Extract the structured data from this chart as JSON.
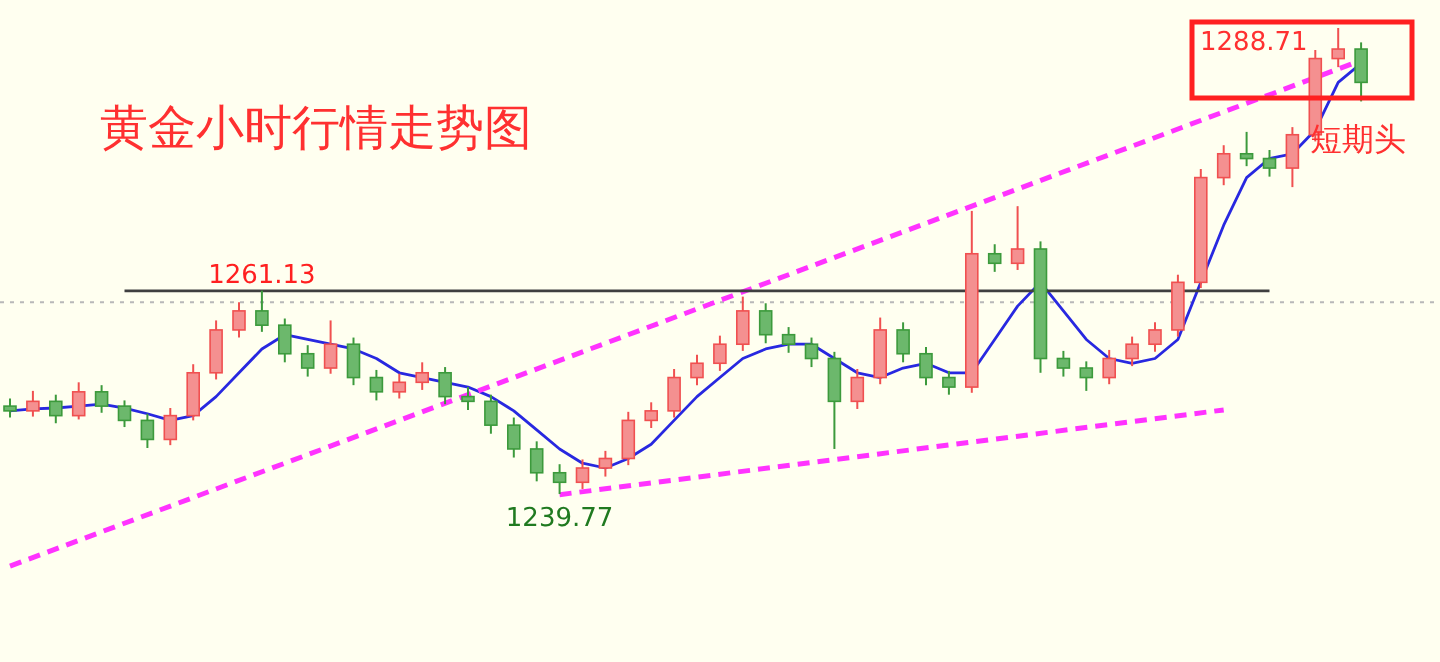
{
  "chart_data": {
    "type": "candlestick",
    "title": "黄金小时行情走势图",
    "categories": [
      null,
      null,
      null,
      null,
      null,
      null,
      null,
      null,
      null,
      null,
      null,
      null,
      null,
      null,
      null,
      null,
      null,
      null,
      null,
      null,
      null,
      null,
      null,
      null,
      null,
      null,
      null,
      null,
      null,
      null,
      null,
      null,
      null,
      null,
      null,
      null,
      null,
      null,
      null,
      null,
      null,
      null,
      null,
      null,
      null,
      null,
      null,
      null,
      null,
      null,
      null,
      null,
      null,
      null,
      null,
      null,
      null,
      null,
      null,
      null
    ],
    "ohlc": [
      [
        1249.0,
        1249.8,
        1247.8,
        1248.5
      ],
      [
        1248.5,
        1250.6,
        1247.9,
        1249.5
      ],
      [
        1249.5,
        1250.2,
        1247.2,
        1248.0
      ],
      [
        1248.0,
        1251.5,
        1247.6,
        1250.5
      ],
      [
        1250.5,
        1251.2,
        1248.3,
        1249.0
      ],
      [
        1249.0,
        1249.6,
        1246.8,
        1247.5
      ],
      [
        1247.5,
        1248.2,
        1244.6,
        1245.5
      ],
      [
        1245.5,
        1248.8,
        1244.9,
        1248.0
      ],
      [
        1248.0,
        1253.4,
        1247.5,
        1252.5
      ],
      [
        1252.5,
        1258.0,
        1251.8,
        1257.0
      ],
      [
        1257.0,
        1259.9,
        1256.2,
        1259.0
      ],
      [
        1259.0,
        1261.13,
        1256.8,
        1257.5
      ],
      [
        1257.5,
        1258.2,
        1253.6,
        1254.5
      ],
      [
        1254.5,
        1255.4,
        1252.1,
        1253.0
      ],
      [
        1253.0,
        1258.0,
        1252.4,
        1255.5
      ],
      [
        1255.5,
        1256.2,
        1251.2,
        1252.0
      ],
      [
        1252.0,
        1252.8,
        1249.6,
        1250.5
      ],
      [
        1250.5,
        1252.4,
        1249.8,
        1251.5
      ],
      [
        1251.5,
        1253.6,
        1250.7,
        1252.5
      ],
      [
        1252.5,
        1253.1,
        1249.2,
        1250.0
      ],
      [
        1250.0,
        1251.0,
        1248.6,
        1249.5
      ],
      [
        1249.5,
        1250.2,
        1246.1,
        1247.0
      ],
      [
        1247.0,
        1247.8,
        1243.6,
        1244.5
      ],
      [
        1244.5,
        1245.3,
        1241.1,
        1242.0
      ],
      [
        1242.0,
        1242.9,
        1239.77,
        1241.0
      ],
      [
        1241.0,
        1243.4,
        1240.3,
        1242.5
      ],
      [
        1242.5,
        1244.3,
        1241.6,
        1243.5
      ],
      [
        1243.5,
        1248.4,
        1242.8,
        1247.5
      ],
      [
        1247.5,
        1249.4,
        1246.7,
        1248.5
      ],
      [
        1248.5,
        1252.9,
        1247.8,
        1252.0
      ],
      [
        1252.0,
        1254.4,
        1251.2,
        1253.5
      ],
      [
        1253.5,
        1256.4,
        1252.7,
        1255.5
      ],
      [
        1255.5,
        1260.5,
        1254.8,
        1259.0
      ],
      [
        1259.0,
        1259.8,
        1255.6,
        1256.5
      ],
      [
        1256.5,
        1257.3,
        1254.6,
        1255.5
      ],
      [
        1255.5,
        1256.2,
        1253.1,
        1254.0
      ],
      [
        1254.0,
        1254.7,
        1244.5,
        1249.5
      ],
      [
        1249.5,
        1252.9,
        1248.7,
        1252.0
      ],
      [
        1252.0,
        1258.3,
        1251.3,
        1257.0
      ],
      [
        1257.0,
        1257.8,
        1253.6,
        1254.5
      ],
      [
        1254.5,
        1255.2,
        1251.2,
        1252.0
      ],
      [
        1252.0,
        1252.7,
        1250.2,
        1251.0
      ],
      [
        1251.0,
        1269.5,
        1250.4,
        1265.0
      ],
      [
        1265.0,
        1266.0,
        1263.1,
        1264.0
      ],
      [
        1264.0,
        1270.0,
        1263.3,
        1265.5
      ],
      [
        1265.5,
        1266.3,
        1252.5,
        1254.0
      ],
      [
        1254.0,
        1254.8,
        1252.1,
        1253.0
      ],
      [
        1253.0,
        1253.7,
        1250.6,
        1252.0
      ],
      [
        1252.0,
        1254.9,
        1251.3,
        1254.0
      ],
      [
        1254.0,
        1256.3,
        1253.2,
        1255.5
      ],
      [
        1255.5,
        1257.8,
        1254.7,
        1257.0
      ],
      [
        1257.0,
        1262.8,
        1256.3,
        1262.0
      ],
      [
        1262.0,
        1273.9,
        1261.4,
        1273.0
      ],
      [
        1273.0,
        1276.4,
        1272.2,
        1275.5
      ],
      [
        1275.5,
        1277.8,
        1274.2,
        1275.0
      ],
      [
        1275.0,
        1275.9,
        1273.1,
        1274.0
      ],
      [
        1274.0,
        1278.3,
        1272.0,
        1277.5
      ],
      [
        1277.5,
        1286.4,
        1276.8,
        1285.5
      ],
      [
        1285.5,
        1288.71,
        1284.6,
        1286.5
      ],
      [
        1286.5,
        1287.2,
        1281.0,
        1283.0
      ]
    ],
    "series": [
      {
        "type": "line",
        "color": "#2828e0",
        "values": [
          1248.5,
          1248.7,
          1248.8,
          1249.0,
          1249.2,
          1248.8,
          1248.2,
          1247.5,
          1248.0,
          1250.0,
          1252.5,
          1255.0,
          1256.5,
          1256.0,
          1255.5,
          1255.0,
          1254.0,
          1252.5,
          1252.0,
          1251.5,
          1251.0,
          1250.0,
          1248.5,
          1246.5,
          1244.5,
          1243.0,
          1242.5,
          1243.5,
          1245.0,
          1247.5,
          1250.0,
          1252.0,
          1254.0,
          1255.0,
          1255.5,
          1255.5,
          1254.0,
          1252.5,
          1252.0,
          1253.0,
          1253.5,
          1252.5,
          1252.5,
          1256.0,
          1259.5,
          1262.0,
          1259.0,
          1256.0,
          1254.0,
          1253.5,
          1254.0,
          1256.0,
          1262.0,
          1268.0,
          1273.0,
          1275.0,
          1275.5,
          1278.0,
          1283.0,
          1285.0
        ]
      },
      {
        "type": "line",
        "color": "#ff33ff",
        "line_style": "dashed",
        "values": [
          1232.2,
          null,
          null,
          null,
          null,
          null,
          null,
          null,
          null,
          null,
          null,
          null,
          null,
          null,
          null,
          null,
          null,
          null,
          null,
          null,
          null,
          null,
          null,
          null,
          null,
          null,
          null,
          null,
          null,
          null,
          null,
          null,
          null,
          null,
          null,
          null,
          null,
          null,
          null,
          null,
          null,
          null,
          null,
          null,
          null,
          null,
          null,
          null,
          null,
          null,
          null,
          null,
          null,
          null,
          null,
          null,
          null,
          null,
          null,
          1285.3
        ]
      },
      {
        "type": "line",
        "color": "#ff33ff",
        "line_style": "dashed",
        "values": [
          null,
          null,
          null,
          null,
          null,
          null,
          null,
          null,
          null,
          null,
          null,
          null,
          null,
          null,
          null,
          null,
          null,
          null,
          null,
          null,
          null,
          null,
          null,
          null,
          1239.7,
          null,
          null,
          null,
          null,
          null,
          null,
          null,
          null,
          null,
          null,
          null,
          null,
          null,
          null,
          null,
          null,
          null,
          null,
          null,
          null,
          null,
          null,
          null,
          null,
          null,
          null,
          null,
          null,
          1248.6,
          null,
          null,
          null,
          null,
          null,
          null
        ]
      },
      {
        "type": "line",
        "color": "#404040",
        "values": [
          null,
          null,
          null,
          null,
          null,
          1261.1,
          null,
          null,
          null,
          null,
          null,
          null,
          null,
          null,
          null,
          null,
          null,
          null,
          null,
          null,
          null,
          null,
          null,
          null,
          null,
          null,
          null,
          null,
          null,
          null,
          null,
          null,
          null,
          null,
          null,
          null,
          null,
          null,
          null,
          null,
          null,
          null,
          null,
          null,
          null,
          null,
          null,
          null,
          null,
          null,
          null,
          null,
          null,
          null,
          null,
          1261.1,
          null,
          null,
          null,
          null
        ]
      }
    ],
    "ref_lines": [
      {
        "axis": "y",
        "value": 1259.9,
        "color": "#b8b8b8",
        "line_style": "dotted"
      }
    ],
    "annotations": [
      {
        "text": "1261.13",
        "y": 1261.13
      },
      {
        "text": "1239.77",
        "y": 1239.77
      },
      "1288.71",
      "短期头"
    ],
    "marker": "none"
  }
}
